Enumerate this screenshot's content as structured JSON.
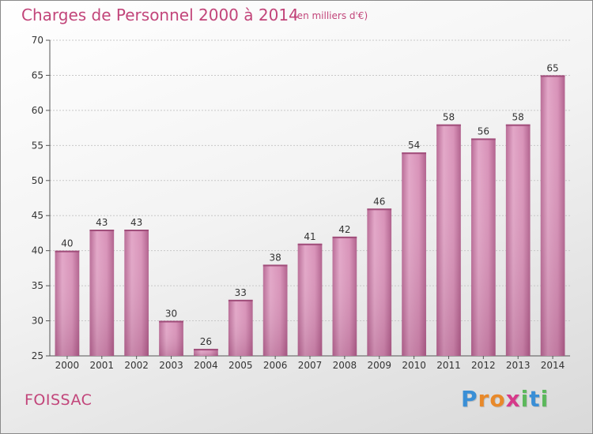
{
  "header": {
    "title": "Charges de Personnel 2000 à 2014",
    "subtitle": "(en milliers d'€)"
  },
  "footer": {
    "commune": "FOISSAC",
    "logo_letters": [
      "P",
      "r",
      "o",
      "x",
      "i",
      "t",
      "i"
    ],
    "logo_colors": [
      "#3a8fd6",
      "#e8892a",
      "#e8892a",
      "#d63a8a",
      "#5cb85c",
      "#3a8fd6",
      "#5cb85c"
    ]
  },
  "chart_data": {
    "type": "bar",
    "categories": [
      "2000",
      "2001",
      "2002",
      "2003",
      "2004",
      "2005",
      "2006",
      "2007",
      "2008",
      "2009",
      "2010",
      "2011",
      "2012",
      "2013",
      "2014"
    ],
    "values": [
      40,
      43,
      43,
      30,
      26,
      33,
      38,
      41,
      42,
      46,
      54,
      58,
      56,
      58,
      65
    ],
    "title": "Charges de Personnel 2000 à 2014",
    "subtitle": "(en milliers d'€)",
    "xlabel": "",
    "ylabel": "",
    "ylim": [
      25,
      70
    ],
    "yticks": [
      25,
      30,
      35,
      40,
      45,
      50,
      55,
      60,
      65,
      70
    ],
    "grid": true,
    "bar_color": "#d98cb3"
  }
}
